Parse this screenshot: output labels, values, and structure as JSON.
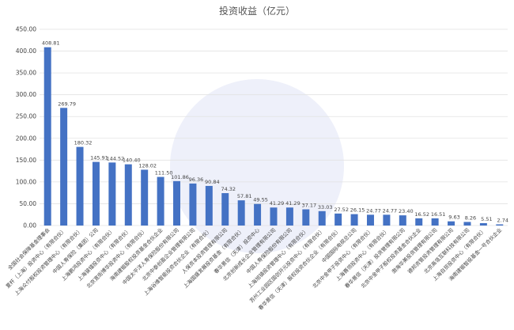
{
  "chart_data": {
    "type": "bar",
    "title": "投资收益（亿元）",
    "categories": [
      "全国社会保障基金理事会",
      "夏杆（上海）投资中心（有限合伙）",
      "上海众付股权投资管理中心（有限合伙）",
      "中国人寿保险（集团）公司",
      "上海鹏鸿投资中心（有限合伙）",
      "上海骏镭投资中心（有限合伙）",
      "北京宽街博华投资中心（有限合伙）",
      "海南建银股权投资基金合伙企业",
      "中国太平洋人寿保险股份有限公司",
      "北京中泰创盈企业管理有限公司",
      "上海谷维智能投资合伙企业（有限合伙）",
      "人保资本投资管理有限公司",
      "上海国盛发展投资基金（有限合伙）",
      "春华景信（天津）投资中心",
      "北京创新成长企业管理有限公司",
      "中国人寿保险股份有限公司",
      "上海旭镇投资管理中心（有限合伙）",
      "苏州工业园区国创开元投资中心（有限合伙）",
      "春华景信（天津）股权投资合伙企业（有限合伙）",
      "中国国际电视总公司",
      "北京中金甲子投资中心（有限合伙）",
      "上海赛领投资中心（有限合伙）",
      "春华景信（天津）投资管理有限公司",
      "北京中金甲子股权投资基金合伙企业",
      "渤海华美投资管理有限公司",
      "德邦资管投资管理有限公司",
      "北京高瓴互联科技有限公司",
      "上海自贸投资中心（有限合伙）",
      "海南建银智投基金一号合伙企业"
    ],
    "values": [
      408.81,
      269.79,
      180.32,
      145.91,
      144.52,
      140.4,
      128.02,
      111.5,
      101.86,
      96.36,
      90.84,
      74.32,
      57.81,
      49.55,
      41.29,
      41.29,
      37.17,
      33.03,
      27.52,
      26.15,
      24.77,
      24.77,
      23.4,
      16.52,
      16.51,
      9.63,
      8.26,
      5.51,
      2.74
    ],
    "value_labels": [
      "408.81",
      "269.79",
      "180.32",
      "145.91",
      "144.52",
      "140.40",
      "128.02",
      "111.50",
      "101.86",
      "96.36",
      "90.84",
      "74.32",
      "57.81",
      "49.55",
      "41.29",
      "41.29",
      "37.17",
      "33.03",
      "27.52",
      "26.15",
      "24.77",
      "24.77",
      "23.40",
      "16.52",
      "16.51",
      "9.63",
      "8.26",
      "5.51",
      "2.74"
    ],
    "color": "#4472c4",
    "ylim": [
      0,
      450
    ],
    "yticks": [
      {
        "value": 0,
        "label": "0.00"
      },
      {
        "value": 50,
        "label": "50.00"
      },
      {
        "value": 100,
        "label": "100.00"
      },
      {
        "value": 150,
        "label": "150.00"
      },
      {
        "value": 200,
        "label": "200.00"
      },
      {
        "value": 250,
        "label": "250.00"
      },
      {
        "value": 300,
        "label": "300.00"
      },
      {
        "value": 350,
        "label": "350.00"
      },
      {
        "value": 400,
        "label": "400.00"
      },
      {
        "value": 450,
        "label": "450.00"
      }
    ],
    "grid": true
  }
}
